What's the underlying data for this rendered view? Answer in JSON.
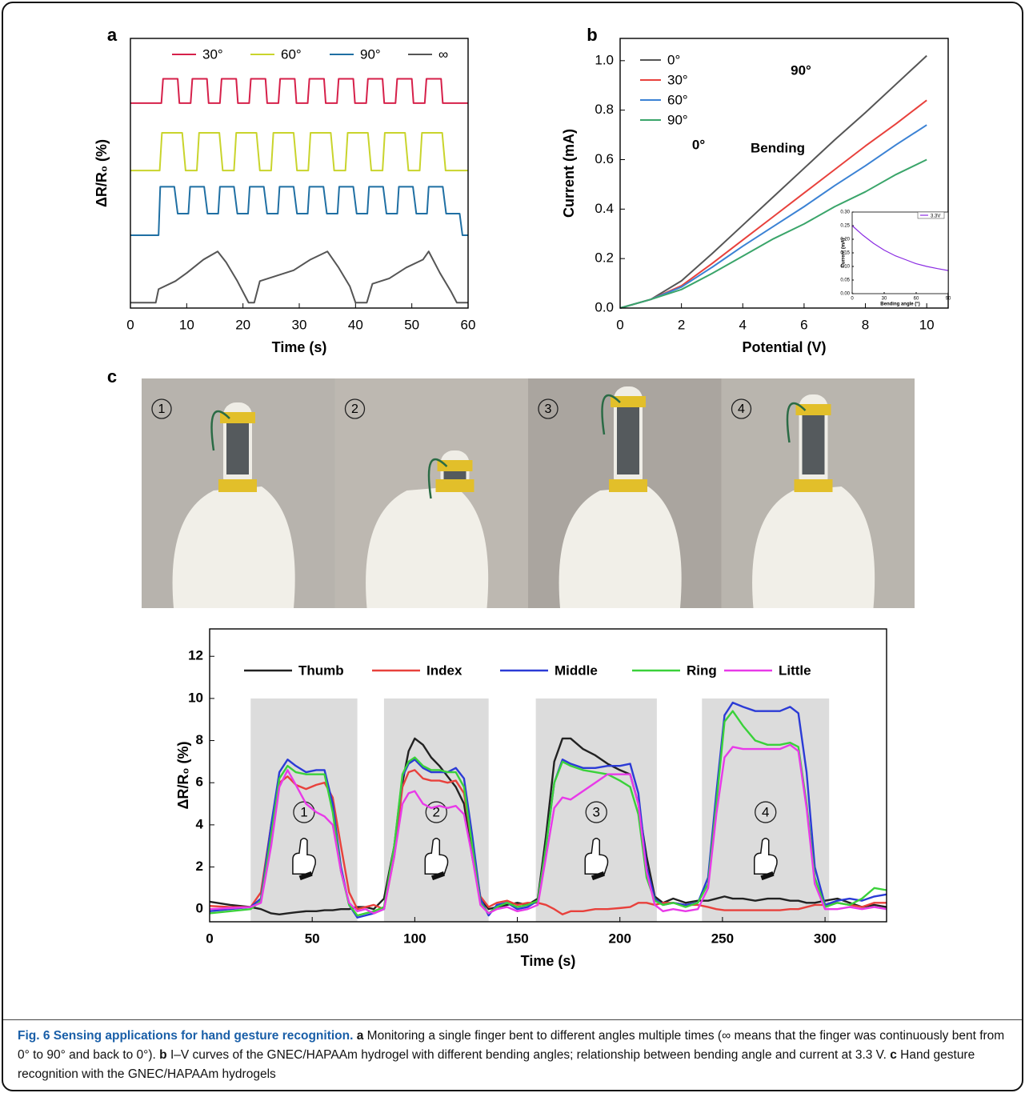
{
  "figure": {
    "panel_labels": [
      "a",
      "b",
      "c"
    ],
    "photo_labels": [
      "1",
      "2",
      "3",
      "4"
    ],
    "caption": [
      "Fig. 6 Sensing applications for hand gesture recognition.",
      "a",
      "Monitoring a single finger bent to different angles multiple times (∞ means that the finger was continuously bent from 0° to 90° and back to 0°).",
      "b",
      "I–V curves of the GNEC/HAPAAm hydrogel with different bending angles; relationship between bending angle and current at 3.3 V.",
      "c",
      "Hand gesture recognition with the GNEC/HAPAAm hydrogels"
    ]
  },
  "chart_data": [
    {
      "type": "line",
      "xlabel": "Time (s)",
      "ylabel": "ΔR/R₀ (%)",
      "xlim": [
        0,
        60
      ],
      "ylim": [
        0,
        100
      ],
      "xticks": [
        0,
        10,
        20,
        30,
        40,
        50,
        60
      ],
      "legend": "top",
      "series": [
        {
          "name": "30°",
          "color": "#d6204a",
          "x": [
            0,
            5.5,
            5.8,
            8.4,
            8.7,
            10.7,
            11,
            13.6,
            13.9,
            15.9,
            16.2,
            18.8,
            19.1,
            21.1,
            21.4,
            24,
            24.3,
            26.3,
            26.6,
            29.2,
            29.5,
            31.5,
            31.8,
            34.4,
            34.7,
            36.7,
            37,
            39.6,
            39.9,
            41.9,
            42.2,
            44.8,
            45.1,
            47.1,
            47.4,
            50,
            50.3,
            52.3,
            52.6,
            55.2,
            55.5,
            60
          ],
          "values": [
            76,
            76,
            85,
            85,
            76,
            76,
            85,
            85,
            76,
            76,
            85,
            85,
            76,
            76,
            85,
            85,
            76,
            76,
            85,
            85,
            76,
            76,
            85,
            85,
            76,
            76,
            85,
            85,
            76,
            76,
            85,
            85,
            76,
            76,
            85,
            85,
            76,
            76,
            85,
            85,
            76,
            76
          ]
        },
        {
          "name": "60°",
          "color": "#c9d42c",
          "x": [
            0,
            5.2,
            5.6,
            9.2,
            9.8,
            11.8,
            12.2,
            15.8,
            16.4,
            18.4,
            18.8,
            22.4,
            23,
            25,
            25.4,
            29,
            29.6,
            31.6,
            32,
            35.6,
            36.2,
            38.2,
            38.6,
            42.2,
            42.8,
            44.8,
            45.2,
            48.8,
            49.4,
            51.4,
            51.8,
            55.4,
            56,
            60
          ],
          "values": [
            51,
            51,
            65,
            65,
            51,
            51,
            65,
            65,
            51,
            51,
            65,
            65,
            51,
            51,
            65,
            65,
            51,
            51,
            65,
            65,
            51,
            51,
            65,
            65,
            51,
            51,
            65,
            65,
            51,
            51,
            65,
            65,
            51,
            51
          ]
        },
        {
          "name": "90°",
          "color": "#1f6fa3",
          "x": [
            0,
            5,
            5.3,
            7.8,
            8.4,
            10.3,
            10.6,
            13.1,
            13.7,
            15.6,
            15.9,
            18.4,
            19,
            20.9,
            21.2,
            23.7,
            24.3,
            26.2,
            26.5,
            29,
            29.6,
            31.5,
            31.8,
            34.3,
            34.9,
            36.8,
            37.1,
            39.6,
            40.2,
            42.1,
            42.4,
            44.9,
            45.5,
            47.4,
            47.7,
            50.2,
            50.8,
            52.7,
            53,
            55.5,
            56.1,
            58.5,
            59,
            60
          ],
          "values": [
            27,
            27,
            45,
            45,
            35,
            35,
            45,
            45,
            35,
            35,
            45,
            45,
            35,
            35,
            45,
            45,
            35,
            35,
            45,
            45,
            35,
            35,
            45,
            45,
            35,
            35,
            45,
            45,
            35,
            35,
            45,
            45,
            35,
            35,
            45,
            45,
            35,
            35,
            45,
            45,
            35,
            35,
            27,
            27
          ]
        },
        {
          "name": "∞",
          "color": "#555555",
          "x": [
            0,
            4.5,
            5,
            8,
            10,
            13,
            15.5,
            17,
            19,
            20.5,
            21,
            22,
            23,
            26,
            29,
            32,
            35,
            37,
            39,
            40,
            42,
            43,
            46,
            49,
            52,
            53,
            55,
            57,
            58,
            60
          ],
          "values": [
            2,
            2,
            7,
            10,
            13,
            18,
            21,
            17,
            10,
            4,
            2,
            2,
            10,
            12,
            14,
            18,
            21,
            15,
            8,
            2,
            2,
            9,
            11,
            15,
            18,
            21,
            13,
            6,
            2,
            2
          ]
        }
      ]
    },
    {
      "type": "line",
      "xlabel": "Potential (V)",
      "ylabel": "Current (mA)",
      "xlim": [
        0,
        10.7
      ],
      "ylim": [
        0,
        1.09
      ],
      "xticks": [
        0,
        2,
        4,
        6,
        8,
        10
      ],
      "yticks": [
        {
          "value": 0,
          "label": "0.0"
        },
        0.2,
        0.4,
        0.6,
        0.8,
        {
          "value": 1,
          "label": "1.0"
        }
      ],
      "legend": "upper left",
      "annotations": [
        "0°",
        "90°",
        "Bending"
      ],
      "x": [
        0,
        1,
        2,
        3,
        4,
        5,
        6,
        7,
        8,
        9,
        10
      ],
      "series": [
        {
          "name": "0°",
          "color": "#555555",
          "values": [
            0,
            0.035,
            0.11,
            0.22,
            0.335,
            0.45,
            0.565,
            0.68,
            0.79,
            0.905,
            1.02
          ]
        },
        {
          "name": "30°",
          "color": "#e8413c",
          "values": [
            0,
            0.035,
            0.09,
            0.18,
            0.275,
            0.37,
            0.465,
            0.56,
            0.655,
            0.745,
            0.84
          ]
        },
        {
          "name": "60°",
          "color": "#3b82d4",
          "values": [
            0,
            0.035,
            0.085,
            0.165,
            0.25,
            0.33,
            0.41,
            0.495,
            0.575,
            0.66,
            0.74
          ]
        },
        {
          "name": "90°",
          "color": "#3aa56a",
          "values": [
            0,
            0.035,
            0.075,
            0.14,
            0.21,
            0.28,
            0.34,
            0.41,
            0.47,
            0.54,
            0.6
          ]
        }
      ]
    },
    {
      "type": "line",
      "xlabel": "Bending angle (°)",
      "ylabel": "Current (mA)",
      "xlim": [
        0,
        90
      ],
      "ylim": [
        0,
        0.3
      ],
      "xticks": [
        0,
        30,
        60,
        90
      ],
      "yticks": [
        {
          "value": 0,
          "label": "0.00"
        },
        0.05,
        {
          "value": 0.1,
          "label": "0.10"
        },
        0.15,
        {
          "value": 0.2,
          "label": "0.20"
        },
        0.25,
        {
          "value": 0.3,
          "label": "0.30"
        }
      ],
      "legend": "upper right",
      "x": [
        0,
        10,
        20,
        30,
        40,
        50,
        60,
        70,
        80,
        90
      ],
      "series": [
        {
          "name": "3.3V",
          "color": "#8a2be2",
          "values": [
            0.25,
            0.215,
            0.185,
            0.16,
            0.14,
            0.125,
            0.11,
            0.1,
            0.092,
            0.085
          ]
        }
      ]
    },
    {
      "type": "line",
      "xlabel": "Time (s)",
      "ylabel": "ΔR/R₀ (%)",
      "xlim": [
        0,
        330
      ],
      "ylim": [
        -0.6,
        13.3
      ],
      "xticks": [
        0,
        50,
        100,
        150,
        200,
        250,
        300
      ],
      "yticks": [
        0,
        2,
        4,
        6,
        8,
        10,
        12
      ],
      "legend": "top",
      "shaded_regions": [
        [
          20,
          72
        ],
        [
          85,
          136
        ],
        [
          159,
          218
        ],
        [
          240,
          302
        ]
      ],
      "shaded_top": 10,
      "region_labels": [
        "1",
        "2",
        "3",
        "4"
      ],
      "x": [
        0,
        10,
        20,
        25,
        30,
        34,
        38,
        42,
        47,
        52,
        56,
        60,
        64,
        68,
        72,
        76,
        80,
        85,
        90,
        94,
        97,
        100,
        104,
        108,
        112,
        116,
        120,
        124,
        128,
        132,
        136,
        140,
        145,
        150,
        155,
        160,
        164,
        168,
        172,
        176,
        182,
        188,
        194,
        200,
        205,
        209,
        213,
        217,
        221,
        226,
        232,
        238,
        243,
        247,
        251,
        255,
        260,
        266,
        272,
        278,
        283,
        287,
        291,
        295,
        300,
        306,
        312,
        318,
        324,
        330
      ],
      "series": [
        {
          "name": "Thumb",
          "color": "#222222",
          "values": [
            0.35,
            0.2,
            0.1,
            0,
            -0.2,
            -0.25,
            -0.2,
            -0.15,
            -0.1,
            -0.1,
            -0.05,
            -0.05,
            0,
            0,
            0.1,
            0.1,
            0,
            0.5,
            3,
            6,
            7.5,
            8.1,
            7.8,
            7.2,
            6.8,
            6.3,
            5.8,
            5,
            2.5,
            0.5,
            0,
            0.1,
            0.2,
            0.3,
            0.2,
            0.5,
            3.5,
            7,
            8.1,
            8.1,
            7.6,
            7.3,
            6.9,
            6.6,
            6.4,
            5,
            2.5,
            0.6,
            0.3,
            0.5,
            0.3,
            0.4,
            0.4,
            0.5,
            0.6,
            0.5,
            0.5,
            0.4,
            0.5,
            0.5,
            0.4,
            0.4,
            0.3,
            0.3,
            0.4,
            0.5,
            0.3,
            0.1,
            0.2,
            0.1
          ]
        },
        {
          "name": "Index",
          "color": "#e8413c",
          "values": [
            0.15,
            0.1,
            0.1,
            0.8,
            4,
            6,
            6.3,
            5.9,
            5.7,
            5.9,
            6,
            5.3,
            3,
            0.8,
            0,
            0.1,
            0.2,
            0,
            2.5,
            5.8,
            6.5,
            6.6,
            6.2,
            6.1,
            6.1,
            6,
            6.1,
            5.5,
            3,
            0.6,
            0.1,
            0.3,
            0.4,
            0.2,
            0.3,
            0.3,
            0.2,
            0,
            -0.25,
            -0.1,
            -0.1,
            0,
            0,
            0.05,
            0.1,
            0.3,
            0.3,
            0.2,
            0.3,
            0.3,
            0.2,
            0.2,
            0.1,
            0,
            -0.05,
            -0.05,
            -0.05,
            -0.05,
            -0.05,
            -0.05,
            0,
            0,
            0.1,
            0.2,
            0.2,
            0.3,
            0.2,
            0.1,
            0.3,
            0.3
          ]
        },
        {
          "name": "Middle",
          "color": "#2b3bd6",
          "values": [
            -0.1,
            0,
            0.1,
            0.5,
            4,
            6.5,
            7.1,
            6.8,
            6.5,
            6.6,
            6.6,
            5,
            2,
            0.2,
            -0.4,
            -0.3,
            -0.2,
            0,
            3,
            6.3,
            6.9,
            7.1,
            6.7,
            6.5,
            6.5,
            6.5,
            6.7,
            6.2,
            3.5,
            0.5,
            -0.3,
            0.2,
            0.3,
            0,
            0.1,
            0.4,
            3,
            6,
            7.1,
            6.9,
            6.7,
            6.7,
            6.8,
            6.8,
            6.9,
            5.5,
            2,
            0.5,
            0.2,
            0.3,
            0.2,
            0.3,
            1.5,
            5.5,
            9.2,
            9.8,
            9.6,
            9.4,
            9.4,
            9.4,
            9.6,
            9.3,
            6.5,
            2,
            0.2,
            0.4,
            0.5,
            0.4,
            0.6,
            0.7
          ]
        },
        {
          "name": "Ring",
          "color": "#3ad13a",
          "values": [
            -0.2,
            -0.1,
            0,
            0.4,
            3.5,
            6.2,
            6.8,
            6.5,
            6.4,
            6.4,
            6.4,
            4.6,
            1.8,
            0.2,
            -0.3,
            -0.2,
            -0.1,
            0.1,
            3,
            6.4,
            7,
            7.2,
            6.8,
            6.6,
            6.6,
            6.5,
            6.5,
            5.8,
            3,
            0.3,
            -0.2,
            0.1,
            0.3,
            0.1,
            0.2,
            0.4,
            3,
            6,
            7,
            6.8,
            6.6,
            6.5,
            6.4,
            6.1,
            5.8,
            4.5,
            1.5,
            0.4,
            0.2,
            0.3,
            0.1,
            0.3,
            1.2,
            5,
            8.9,
            9.4,
            8.7,
            8,
            7.8,
            7.8,
            7.9,
            7.7,
            5,
            1.5,
            0.1,
            0.3,
            0.2,
            0.5,
            1,
            0.9
          ]
        },
        {
          "name": "Little",
          "color": "#e83ae8",
          "values": [
            0,
            0.05,
            0.1,
            0.3,
            3,
            5.8,
            6.6,
            5.9,
            5,
            4.6,
            4.4,
            4,
            1.8,
            0.3,
            -0.1,
            0,
            -0.2,
            0,
            2.5,
            5,
            5.5,
            5.6,
            5,
            4.8,
            4.9,
            4.8,
            4.9,
            4.5,
            2.5,
            0.2,
            -0.2,
            0,
            0.1,
            -0.1,
            0,
            0.2,
            2.5,
            4.8,
            5.3,
            5.2,
            5.6,
            6,
            6.4,
            6.4,
            6.4,
            5,
            1.8,
            0.2,
            -0.1,
            0,
            -0.1,
            0,
            1,
            4.5,
            7.2,
            7.7,
            7.6,
            7.6,
            7.6,
            7.6,
            7.8,
            7.5,
            4.8,
            1.2,
            0,
            0,
            0.1,
            0,
            0.1,
            0
          ]
        }
      ]
    }
  ]
}
